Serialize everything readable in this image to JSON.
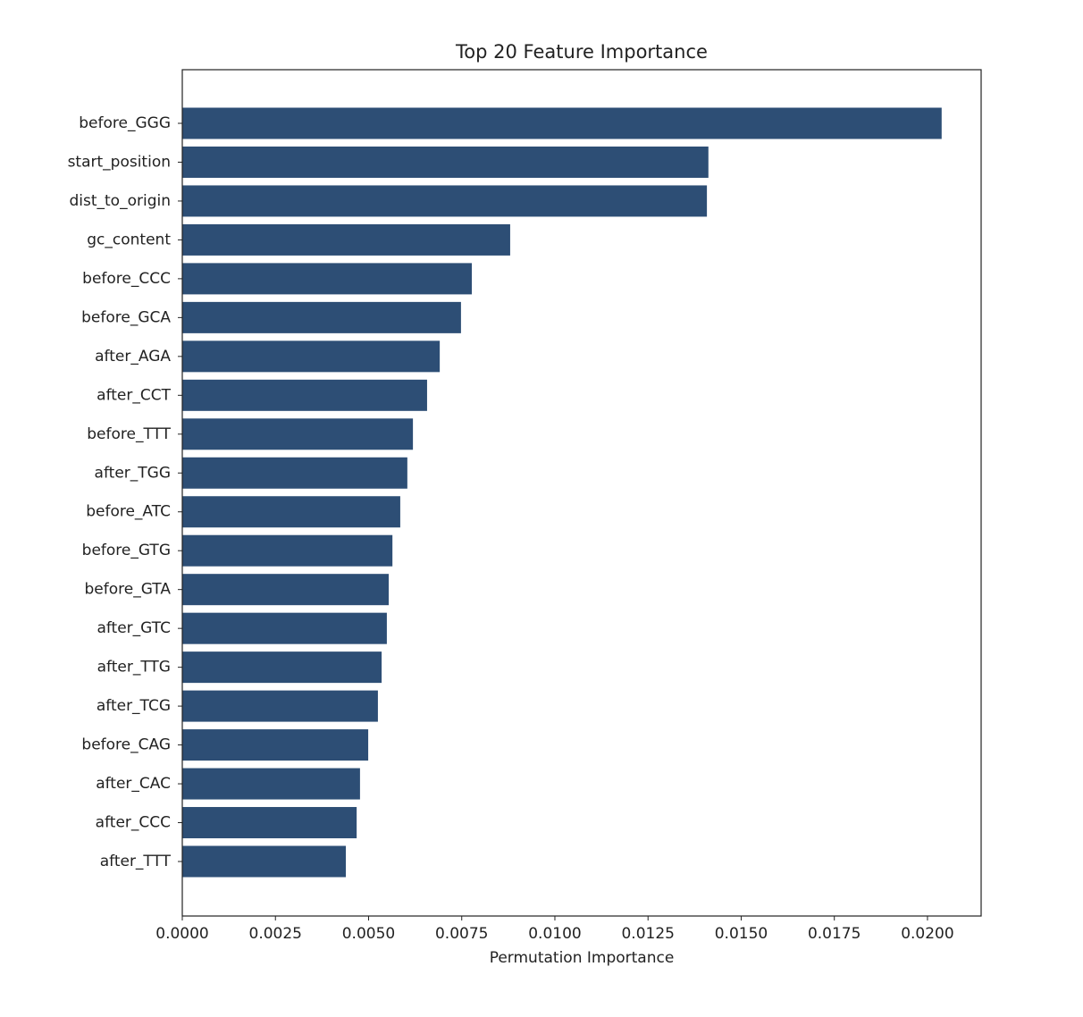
{
  "chart_data": {
    "type": "barh",
    "title": "Top 20 Feature Importance",
    "x_label": "Permutation Importance",
    "categories": [
      "before_GGG",
      "start_position",
      "dist_to_origin",
      "gc_content",
      "before_CCC",
      "before_GCA",
      "after_AGA",
      "after_CCT",
      "before_TTT",
      "after_TGG",
      "before_ATC",
      "before_GTG",
      "before_GTA",
      "after_GTC",
      "after_TTG",
      "after_TCG",
      "before_CAG",
      "after_CAC",
      "after_CCC",
      "after_TTT"
    ],
    "values": [
      0.02038,
      0.01412,
      0.01408,
      0.0088,
      0.00777,
      0.00748,
      0.00691,
      0.00657,
      0.00619,
      0.00604,
      0.00585,
      0.00564,
      0.00554,
      0.00549,
      0.00535,
      0.00525,
      0.00499,
      0.00477,
      0.00468,
      0.00439
    ],
    "color": "#2d4e75",
    "xlim": [
      0,
      0.02144
    ],
    "xticks": [
      {
        "value": 0,
        "label": "0.0000"
      },
      {
        "value": 0.0025,
        "label": "0.0025"
      },
      {
        "value": 0.005,
        "label": "0.0050"
      },
      {
        "value": 0.0075,
        "label": "0.0075"
      },
      {
        "value": 0.01,
        "label": "0.0100"
      },
      {
        "value": 0.0125,
        "label": "0.0125"
      },
      {
        "value": 0.015,
        "label": "0.0150"
      },
      {
        "value": 0.0175,
        "label": "0.0175"
      },
      {
        "value": 0.02,
        "label": "0.0200"
      }
    ]
  }
}
